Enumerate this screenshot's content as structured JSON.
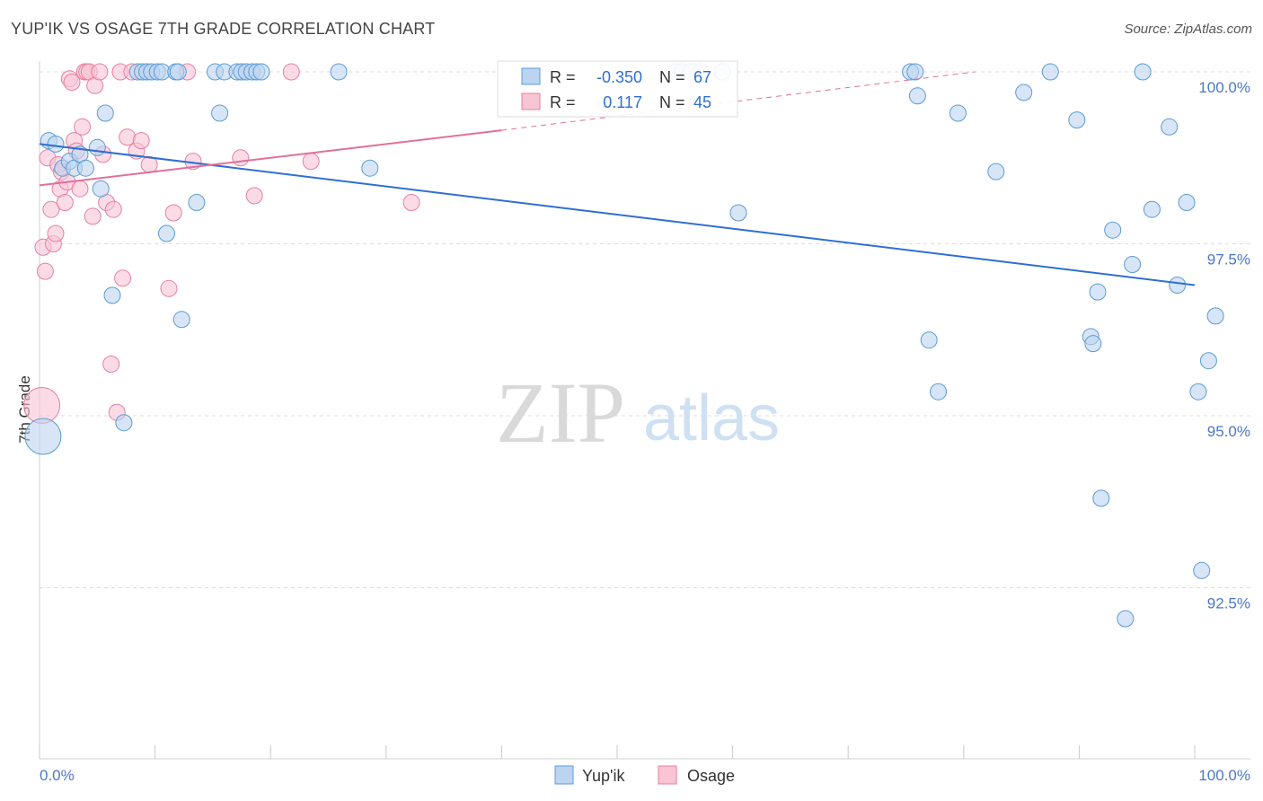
{
  "title": "YUP'IK VS OSAGE 7TH GRADE CORRELATION CHART",
  "source": "Source: ZipAtlas.com",
  "colors": {
    "blue": "#5b9bd5",
    "blue_fill": "#bcd4f0",
    "blue_line": "#2f6fd0",
    "pink": "#e87fa0",
    "pink_fill": "#f8c5d5",
    "pink_line": "#e0709a",
    "axis_text": "#4a78c8"
  },
  "legend_stats": {
    "r_label": "R =",
    "n_label": "N =",
    "blue_r": "-0.350",
    "blue_n": "67",
    "pink_r": "0.117",
    "pink_n": "45"
  },
  "chart_data": {
    "type": "scatter",
    "title": "YUP'IK VS OSAGE 7TH GRADE CORRELATION CHART",
    "xlabel": "",
    "ylabel": "7th Grade",
    "xlim": [
      0,
      100
    ],
    "ylim": [
      90.0,
      100.35
    ],
    "x_tick_labels": [
      "0.0%",
      "100.0%"
    ],
    "y_ticks": [
      {
        "value": 100.0,
        "label": "100.0%"
      },
      {
        "value": 97.5,
        "label": "97.5%"
      },
      {
        "value": 95.0,
        "label": "95.0%"
      },
      {
        "value": 92.5,
        "label": "92.5%"
      }
    ],
    "grid": true,
    "watermark": {
      "part1": "ZIP",
      "part2": "atlas"
    },
    "series": [
      {
        "name": "Yup'ik",
        "color": "#5b9bd5",
        "trend": {
          "x0": 0,
          "y0": 98.95,
          "x1": 100,
          "y1": 96.9
        },
        "points": [
          [
            0.3,
            94.7
          ],
          [
            0.8,
            99.0
          ],
          [
            1.4,
            98.95
          ],
          [
            2.0,
            98.6
          ],
          [
            2.6,
            98.7
          ],
          [
            3.0,
            98.6
          ],
          [
            3.5,
            98.8
          ],
          [
            4.0,
            98.6
          ],
          [
            5.0,
            98.9
          ],
          [
            5.3,
            98.3
          ],
          [
            5.7,
            99.4
          ],
          [
            6.3,
            96.75
          ],
          [
            7.3,
            94.9
          ],
          [
            8.5,
            100.0
          ],
          [
            8.9,
            100.0
          ],
          [
            9.3,
            100.0
          ],
          [
            9.7,
            100.0
          ],
          [
            10.2,
            100.0
          ],
          [
            10.6,
            100.0
          ],
          [
            11.0,
            97.65
          ],
          [
            12.3,
            96.4
          ],
          [
            11.8,
            100.0
          ],
          [
            12.0,
            100.0
          ],
          [
            13.6,
            98.1
          ],
          [
            15.2,
            100.0
          ],
          [
            15.6,
            99.4
          ],
          [
            16.0,
            100.0
          ],
          [
            17.1,
            100.0
          ],
          [
            17.5,
            100.0
          ],
          [
            17.9,
            100.0
          ],
          [
            18.4,
            100.0
          ],
          [
            18.8,
            100.0
          ],
          [
            19.2,
            100.0
          ],
          [
            25.9,
            100.0
          ],
          [
            28.6,
            98.6
          ],
          [
            55.1,
            100.0
          ],
          [
            55.6,
            100.0
          ],
          [
            56.4,
            100.0
          ],
          [
            57.2,
            100.0
          ],
          [
            59.1,
            100.0
          ],
          [
            60.5,
            97.95
          ],
          [
            75.4,
            100.0
          ],
          [
            75.8,
            100.0
          ],
          [
            76.0,
            99.65
          ],
          [
            77.0,
            96.1
          ],
          [
            77.8,
            95.35
          ],
          [
            79.5,
            99.4
          ],
          [
            82.8,
            98.55
          ],
          [
            85.2,
            99.7
          ],
          [
            87.5,
            100.0
          ],
          [
            89.8,
            99.3
          ],
          [
            91.0,
            96.15
          ],
          [
            91.2,
            96.05
          ],
          [
            91.6,
            96.8
          ],
          [
            91.9,
            93.8
          ],
          [
            92.9,
            97.7
          ],
          [
            94.0,
            92.05
          ],
          [
            94.6,
            97.2
          ],
          [
            95.5,
            100.0
          ],
          [
            96.3,
            98.0
          ],
          [
            97.8,
            99.2
          ],
          [
            98.5,
            96.9
          ],
          [
            99.3,
            98.1
          ],
          [
            100.3,
            95.35
          ],
          [
            100.6,
            92.75
          ],
          [
            101.2,
            95.8
          ],
          [
            101.8,
            96.45
          ]
        ]
      },
      {
        "name": "Osage",
        "color": "#e87fa0",
        "trend": {
          "x0": 0,
          "y0": 98.35,
          "x1": 40,
          "y1": 99.15,
          "dash_to_x": 81,
          "dash_to_y": 100.0
        },
        "points": [
          [
            0.2,
            95.15
          ],
          [
            0.3,
            97.45
          ],
          [
            0.5,
            97.1
          ],
          [
            0.7,
            98.75
          ],
          [
            1.0,
            98.0
          ],
          [
            1.2,
            97.5
          ],
          [
            1.4,
            97.65
          ],
          [
            1.6,
            98.65
          ],
          [
            1.8,
            98.3
          ],
          [
            1.9,
            98.55
          ],
          [
            2.2,
            98.1
          ],
          [
            2.4,
            98.4
          ],
          [
            2.6,
            99.9
          ],
          [
            2.8,
            99.85
          ],
          [
            3.0,
            99.0
          ],
          [
            3.2,
            98.85
          ],
          [
            3.5,
            98.3
          ],
          [
            3.7,
            99.2
          ],
          [
            3.9,
            100.0
          ],
          [
            4.1,
            100.0
          ],
          [
            4.3,
            100.0
          ],
          [
            4.6,
            97.9
          ],
          [
            4.8,
            99.8
          ],
          [
            5.2,
            100.0
          ],
          [
            5.5,
            98.8
          ],
          [
            5.8,
            98.1
          ],
          [
            6.2,
            95.75
          ],
          [
            6.4,
            98.0
          ],
          [
            6.7,
            95.05
          ],
          [
            7.0,
            100.0
          ],
          [
            7.2,
            97.0
          ],
          [
            7.6,
            99.05
          ],
          [
            8.0,
            100.0
          ],
          [
            8.4,
            98.85
          ],
          [
            8.8,
            99.0
          ],
          [
            9.5,
            98.65
          ],
          [
            11.2,
            96.85
          ],
          [
            11.6,
            97.95
          ],
          [
            12.8,
            100.0
          ],
          [
            13.3,
            98.7
          ],
          [
            17.4,
            98.75
          ],
          [
            18.6,
            98.2
          ],
          [
            21.8,
            100.0
          ],
          [
            23.5,
            98.7
          ],
          [
            32.2,
            98.1
          ]
        ]
      }
    ]
  },
  "legend": {
    "items": [
      "Yup'ik",
      "Osage"
    ]
  }
}
